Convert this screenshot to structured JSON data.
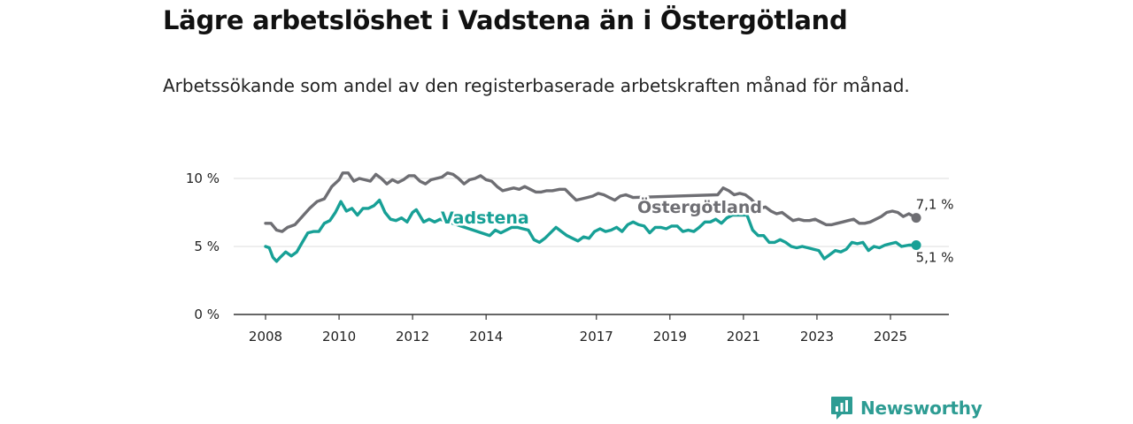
{
  "title": "Lägre arbetslöshet i Vadstena än i Östergötland",
  "subtitle": "Arbetssökande som andel av den registerbaserade arbetskraften månad för månad.",
  "brand": "Newsworthy",
  "colors": {
    "vadstena": "#17a096",
    "ostergotland": "#6e6e73",
    "grid": "#dddddd",
    "axis": "#333333",
    "brand": "#2d9c93"
  },
  "chart_data": {
    "type": "line",
    "title": "Lägre arbetslöshet i Vadstena än i Östergötland",
    "xlabel": "",
    "ylabel": "",
    "xlim": [
      2007.6,
      2026.6
    ],
    "ylim": [
      0,
      10
    ],
    "grid": true,
    "y_ticks": [
      0,
      5,
      10
    ],
    "y_tick_labels": [
      "0 %",
      "5 %",
      "10 %"
    ],
    "x_ticks": [
      2008,
      2010,
      2012,
      2014,
      2017,
      2019,
      2021,
      2023,
      2025
    ],
    "x_tick_labels": [
      "2008",
      "2010",
      "2012",
      "2014",
      "2017",
      "2019",
      "2021",
      "2023",
      "2025"
    ],
    "series": [
      {
        "name": "Östergötland",
        "label": "Östergötland",
        "end_label": "7,1 %",
        "points": [
          [
            2008.0,
            6.7
          ],
          [
            2008.15,
            6.7
          ],
          [
            2008.3,
            6.2
          ],
          [
            2008.45,
            6.1
          ],
          [
            2008.6,
            6.4
          ],
          [
            2008.8,
            6.6
          ],
          [
            2009.0,
            7.2
          ],
          [
            2009.2,
            7.8
          ],
          [
            2009.4,
            8.3
          ],
          [
            2009.6,
            8.5
          ],
          [
            2009.8,
            9.4
          ],
          [
            2010.0,
            9.9
          ],
          [
            2010.1,
            10.4
          ],
          [
            2010.25,
            10.4
          ],
          [
            2010.4,
            9.8
          ],
          [
            2010.55,
            10.0
          ],
          [
            2010.7,
            9.9
          ],
          [
            2010.85,
            9.8
          ],
          [
            2011.0,
            10.3
          ],
          [
            2011.15,
            10.0
          ],
          [
            2011.3,
            9.6
          ],
          [
            2011.45,
            9.9
          ],
          [
            2011.6,
            9.7
          ],
          [
            2011.75,
            9.9
          ],
          [
            2011.9,
            10.2
          ],
          [
            2012.05,
            10.2
          ],
          [
            2012.2,
            9.8
          ],
          [
            2012.35,
            9.6
          ],
          [
            2012.5,
            9.9
          ],
          [
            2012.65,
            10.0
          ],
          [
            2012.8,
            10.1
          ],
          [
            2012.95,
            10.4
          ],
          [
            2013.1,
            10.3
          ],
          [
            2013.25,
            10.0
          ],
          [
            2013.4,
            9.6
          ],
          [
            2013.55,
            9.9
          ],
          [
            2013.7,
            10.0
          ],
          [
            2013.85,
            10.2
          ],
          [
            2014.0,
            9.9
          ],
          [
            2014.15,
            9.8
          ],
          [
            2014.3,
            9.4
          ],
          [
            2014.45,
            9.1
          ],
          [
            2014.6,
            9.2
          ],
          [
            2014.75,
            9.3
          ],
          [
            2014.9,
            9.2
          ],
          [
            2015.05,
            9.4
          ],
          [
            2015.2,
            9.2
          ],
          [
            2015.35,
            9.0
          ],
          [
            2015.5,
            9.0
          ],
          [
            2015.65,
            9.1
          ],
          [
            2015.8,
            9.1
          ],
          [
            2016.0,
            9.2
          ],
          [
            2016.15,
            9.2
          ],
          [
            2016.3,
            8.8
          ],
          [
            2016.45,
            8.4
          ],
          [
            2016.6,
            8.5
          ],
          [
            2016.75,
            8.6
          ],
          [
            2016.9,
            8.7
          ],
          [
            2017.05,
            8.9
          ],
          [
            2017.2,
            8.8
          ],
          [
            2017.35,
            8.6
          ],
          [
            2017.5,
            8.4
          ],
          [
            2017.65,
            8.7
          ],
          [
            2017.8,
            8.8
          ],
          [
            2018.0,
            8.6
          ],
          [
            2020.3,
            8.8
          ],
          [
            2020.45,
            9.3
          ],
          [
            2020.6,
            9.1
          ],
          [
            2020.75,
            8.8
          ],
          [
            2020.9,
            8.9
          ],
          [
            2021.05,
            8.8
          ],
          [
            2021.2,
            8.5
          ],
          [
            2021.45,
            7.8
          ],
          [
            2021.6,
            7.9
          ],
          [
            2021.75,
            7.6
          ],
          [
            2021.9,
            7.4
          ],
          [
            2022.05,
            7.5
          ],
          [
            2022.2,
            7.2
          ],
          [
            2022.35,
            6.9
          ],
          [
            2022.5,
            7.0
          ],
          [
            2022.65,
            6.9
          ],
          [
            2022.8,
            6.9
          ],
          [
            2022.95,
            7.0
          ],
          [
            2023.1,
            6.8
          ],
          [
            2023.25,
            6.6
          ],
          [
            2023.4,
            6.6
          ],
          [
            2023.55,
            6.7
          ],
          [
            2023.7,
            6.8
          ],
          [
            2023.85,
            6.9
          ],
          [
            2024.0,
            7.0
          ],
          [
            2024.15,
            6.7
          ],
          [
            2024.3,
            6.7
          ],
          [
            2024.45,
            6.8
          ],
          [
            2024.6,
            7.0
          ],
          [
            2024.75,
            7.2
          ],
          [
            2024.9,
            7.5
          ],
          [
            2025.05,
            7.6
          ],
          [
            2025.2,
            7.5
          ],
          [
            2025.35,
            7.2
          ],
          [
            2025.5,
            7.4
          ],
          [
            2025.7,
            7.1
          ]
        ]
      },
      {
        "name": "Vadstena",
        "label": "Vadstena",
        "end_label": "5,1 %",
        "points": [
          [
            2008.0,
            5.0
          ],
          [
            2008.1,
            4.9
          ],
          [
            2008.2,
            4.2
          ],
          [
            2008.3,
            3.9
          ],
          [
            2008.4,
            4.2
          ],
          [
            2008.55,
            4.6
          ],
          [
            2008.7,
            4.3
          ],
          [
            2008.85,
            4.6
          ],
          [
            2009.0,
            5.3
          ],
          [
            2009.15,
            6.0
          ],
          [
            2009.3,
            6.1
          ],
          [
            2009.45,
            6.1
          ],
          [
            2009.6,
            6.7
          ],
          [
            2009.75,
            6.9
          ],
          [
            2009.9,
            7.5
          ],
          [
            2010.05,
            8.3
          ],
          [
            2010.2,
            7.6
          ],
          [
            2010.35,
            7.8
          ],
          [
            2010.5,
            7.3
          ],
          [
            2010.65,
            7.8
          ],
          [
            2010.8,
            7.8
          ],
          [
            2010.95,
            8.0
          ],
          [
            2011.1,
            8.4
          ],
          [
            2011.25,
            7.5
          ],
          [
            2011.4,
            7.0
          ],
          [
            2011.55,
            6.9
          ],
          [
            2011.7,
            7.1
          ],
          [
            2011.85,
            6.8
          ],
          [
            2012.0,
            7.5
          ],
          [
            2012.1,
            7.7
          ],
          [
            2012.3,
            6.8
          ],
          [
            2012.45,
            7.0
          ],
          [
            2012.6,
            6.8
          ],
          [
            2012.75,
            7.0
          ],
          [
            2014.1,
            5.8
          ],
          [
            2014.25,
            6.2
          ],
          [
            2014.4,
            6.0
          ],
          [
            2014.55,
            6.2
          ],
          [
            2014.7,
            6.4
          ],
          [
            2014.85,
            6.4
          ],
          [
            2015.0,
            6.3
          ],
          [
            2015.15,
            6.2
          ],
          [
            2015.3,
            5.5
          ],
          [
            2015.45,
            5.3
          ],
          [
            2015.6,
            5.6
          ],
          [
            2015.75,
            6.0
          ],
          [
            2015.9,
            6.4
          ],
          [
            2016.05,
            6.1
          ],
          [
            2016.2,
            5.8
          ],
          [
            2016.35,
            5.6
          ],
          [
            2016.5,
            5.4
          ],
          [
            2016.65,
            5.7
          ],
          [
            2016.8,
            5.6
          ],
          [
            2016.95,
            6.1
          ],
          [
            2017.1,
            6.3
          ],
          [
            2017.25,
            6.1
          ],
          [
            2017.4,
            6.2
          ],
          [
            2017.55,
            6.4
          ],
          [
            2017.7,
            6.1
          ],
          [
            2017.85,
            6.6
          ],
          [
            2018.0,
            6.8
          ],
          [
            2018.15,
            6.6
          ],
          [
            2018.3,
            6.5
          ],
          [
            2018.45,
            6.0
          ],
          [
            2018.6,
            6.4
          ],
          [
            2018.75,
            6.4
          ],
          [
            2018.9,
            6.3
          ],
          [
            2019.05,
            6.5
          ],
          [
            2019.2,
            6.5
          ],
          [
            2019.35,
            6.1
          ],
          [
            2019.5,
            6.2
          ],
          [
            2019.65,
            6.1
          ],
          [
            2019.8,
            6.4
          ],
          [
            2019.95,
            6.8
          ],
          [
            2020.1,
            6.8
          ],
          [
            2020.25,
            7.0
          ],
          [
            2020.4,
            6.7
          ],
          [
            2020.55,
            7.1
          ],
          [
            2020.7,
            7.3
          ],
          [
            2021.1,
            7.3
          ],
          [
            2021.25,
            6.2
          ],
          [
            2021.4,
            5.8
          ],
          [
            2021.55,
            5.8
          ],
          [
            2021.7,
            5.3
          ],
          [
            2021.85,
            5.3
          ],
          [
            2022.0,
            5.5
          ],
          [
            2022.15,
            5.3
          ],
          [
            2022.3,
            5.0
          ],
          [
            2022.45,
            4.9
          ],
          [
            2022.6,
            5.0
          ],
          [
            2022.75,
            4.9
          ],
          [
            2022.9,
            4.8
          ],
          [
            2023.05,
            4.7
          ],
          [
            2023.2,
            4.1
          ],
          [
            2023.35,
            4.4
          ],
          [
            2023.5,
            4.7
          ],
          [
            2023.65,
            4.6
          ],
          [
            2023.8,
            4.8
          ],
          [
            2023.95,
            5.3
          ],
          [
            2024.1,
            5.2
          ],
          [
            2024.25,
            5.3
          ],
          [
            2024.4,
            4.7
          ],
          [
            2024.55,
            5.0
          ],
          [
            2024.7,
            4.9
          ],
          [
            2024.85,
            5.1
          ],
          [
            2025.0,
            5.2
          ],
          [
            2025.15,
            5.3
          ],
          [
            2025.3,
            5.0
          ],
          [
            2025.5,
            5.1
          ],
          [
            2025.7,
            5.1
          ]
        ]
      }
    ]
  }
}
